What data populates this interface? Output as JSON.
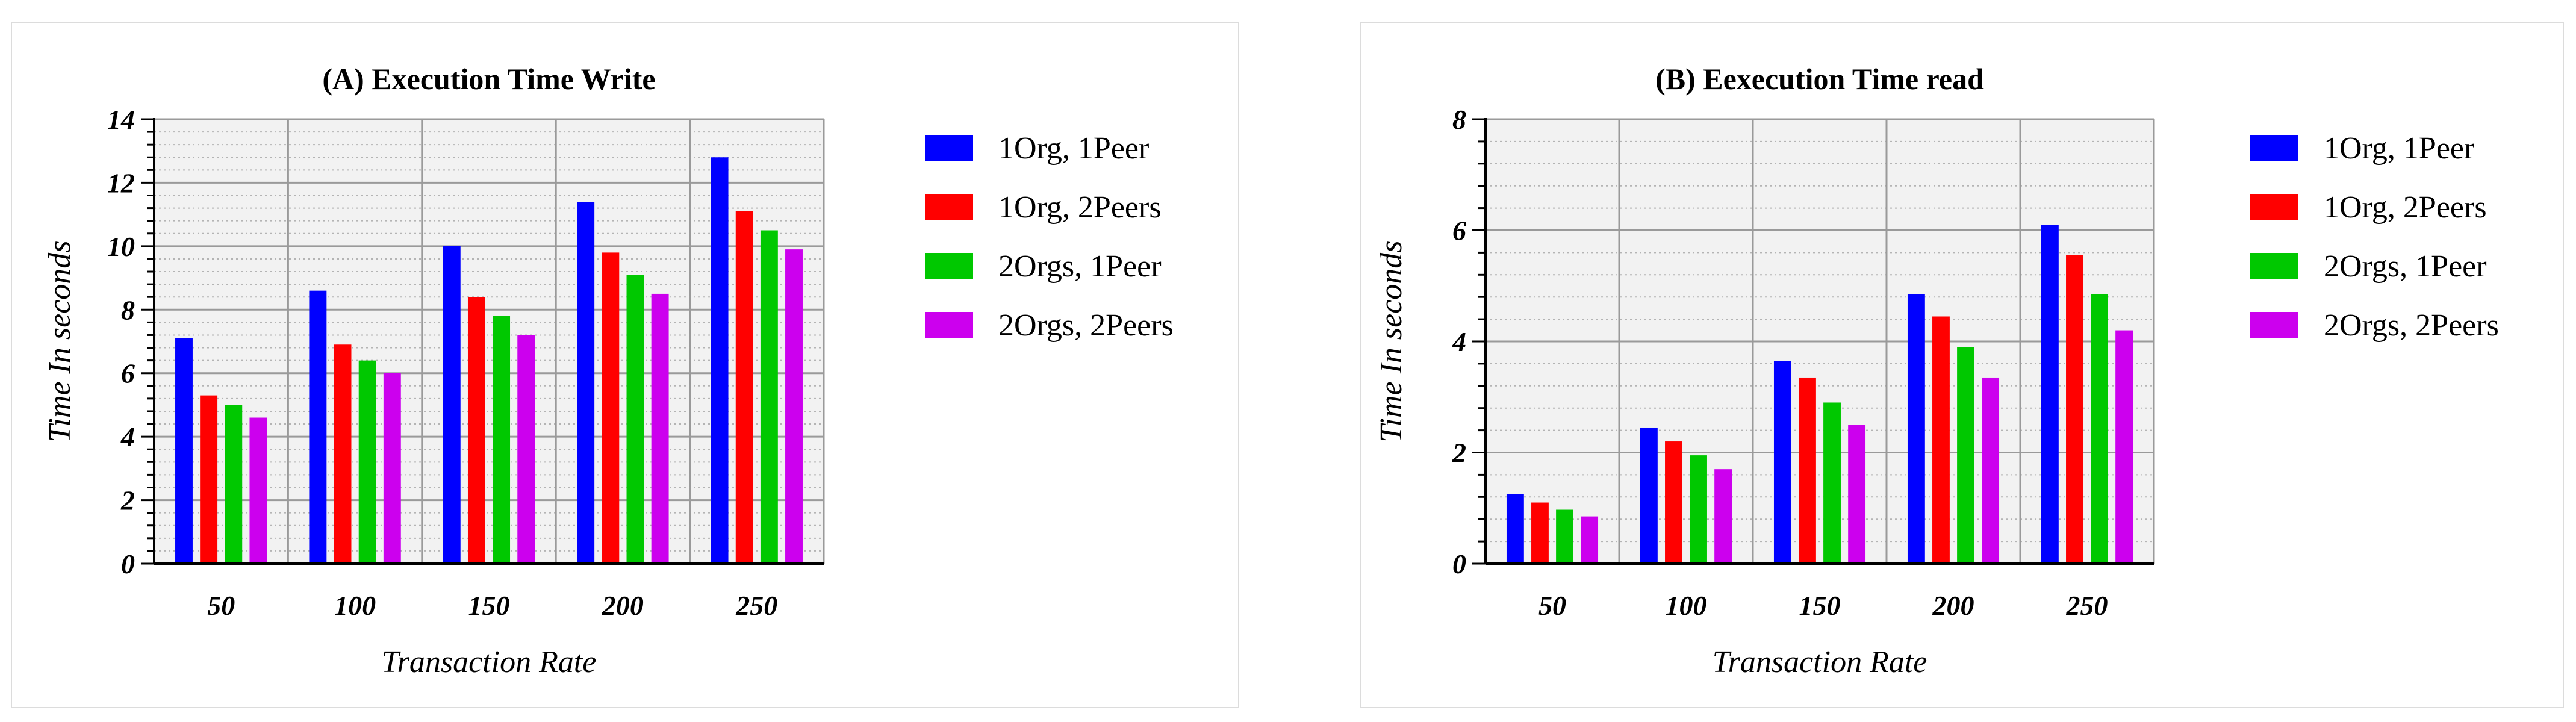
{
  "chart_data": [
    {
      "type": "bar",
      "title": "(A) Execution Time Write",
      "xlabel": "Transaction Rate",
      "ylabel": "Time In seconds",
      "categories": [
        "50",
        "100",
        "150",
        "200",
        "250"
      ],
      "ylim": [
        0,
        14
      ],
      "yticks": [
        "0",
        "2",
        "4",
        "6",
        "8",
        "10",
        "12",
        "14"
      ],
      "grid": true,
      "legend_position": "right",
      "series": [
        {
          "name": "1Org, 1Peer",
          "color": "#0000ff",
          "values": [
            7.1,
            8.6,
            10.0,
            11.4,
            12.8
          ]
        },
        {
          "name": "1Org, 2Peers",
          "color": "#ff0000",
          "values": [
            5.3,
            6.9,
            8.4,
            9.8,
            11.1
          ]
        },
        {
          "name": "2Orgs, 1Peer",
          "color": "#00c800",
          "values": [
            5.0,
            6.4,
            7.8,
            9.1,
            10.5
          ]
        },
        {
          "name": "2Orgs, 2Peers",
          "color": "#cc00ee",
          "values": [
            4.6,
            6.0,
            7.2,
            8.5,
            9.9
          ]
        }
      ]
    },
    {
      "type": "bar",
      "title": "(B) Eexecution Time read",
      "xlabel": "Transaction Rate",
      "ylabel": "Time In seconds",
      "categories": [
        "50",
        "100",
        "150",
        "200",
        "250"
      ],
      "ylim": [
        0,
        8
      ],
      "yticks": [
        "0",
        "2",
        "4",
        "6",
        "8"
      ],
      "grid": true,
      "legend_position": "right",
      "series": [
        {
          "name": "1Org, 1Peer",
          "color": "#0000ff",
          "values": [
            1.25,
            2.45,
            3.65,
            4.85,
            6.1
          ]
        },
        {
          "name": "1Org, 2Peers",
          "color": "#ff0000",
          "values": [
            1.1,
            2.2,
            3.35,
            4.45,
            5.55
          ]
        },
        {
          "name": "2Orgs, 1Peer",
          "color": "#00c800",
          "values": [
            0.97,
            1.95,
            2.9,
            3.9,
            4.85
          ]
        },
        {
          "name": "2Orgs, 2Peers",
          "color": "#cc00ee",
          "values": [
            0.85,
            1.7,
            2.5,
            3.35,
            4.2
          ]
        }
      ]
    }
  ]
}
